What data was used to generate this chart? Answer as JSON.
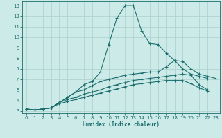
{
  "xlabel": "Humidex (Indice chaleur)",
  "bg_color": "#cceae7",
  "grid_color": "#aacfcc",
  "line_color": "#1a6e6e",
  "xlim": [
    -0.5,
    23.5
  ],
  "ylim": [
    2.8,
    13.4
  ],
  "xticks": [
    0,
    1,
    2,
    3,
    4,
    5,
    6,
    7,
    8,
    9,
    10,
    11,
    12,
    13,
    14,
    15,
    16,
    17,
    18,
    19,
    20,
    21,
    22,
    23
  ],
  "yticks": [
    3,
    4,
    5,
    6,
    7,
    8,
    9,
    10,
    11,
    12,
    13
  ],
  "series": [
    [
      3.2,
      3.1,
      3.2,
      3.3,
      3.8,
      4.3,
      4.8,
      5.5,
      5.8,
      6.7,
      9.3,
      11.8,
      13.0,
      13.0,
      10.6,
      9.4,
      9.3,
      8.5,
      7.8,
      7.7,
      7.0,
      6.5,
      6.3,
      6.1
    ],
    [
      3.2,
      3.1,
      3.2,
      3.3,
      3.8,
      4.3,
      4.8,
      5.0,
      5.4,
      5.8,
      6.0,
      6.2,
      6.4,
      6.5,
      6.6,
      6.7,
      6.7,
      7.2,
      7.8,
      7.0,
      6.5,
      6.3,
      6.1,
      null
    ],
    [
      3.2,
      3.1,
      3.2,
      3.3,
      3.8,
      4.1,
      4.3,
      4.6,
      4.8,
      5.0,
      5.3,
      5.5,
      5.7,
      5.9,
      6.0,
      6.1,
      6.2,
      6.3,
      6.4,
      6.5,
      6.4,
      5.5,
      5.0,
      null
    ],
    [
      3.2,
      3.1,
      3.2,
      3.3,
      3.7,
      3.9,
      4.1,
      4.3,
      4.5,
      4.7,
      4.9,
      5.1,
      5.3,
      5.5,
      5.6,
      5.7,
      5.8,
      5.9,
      5.9,
      5.9,
      5.6,
      5.2,
      4.9,
      null
    ]
  ]
}
